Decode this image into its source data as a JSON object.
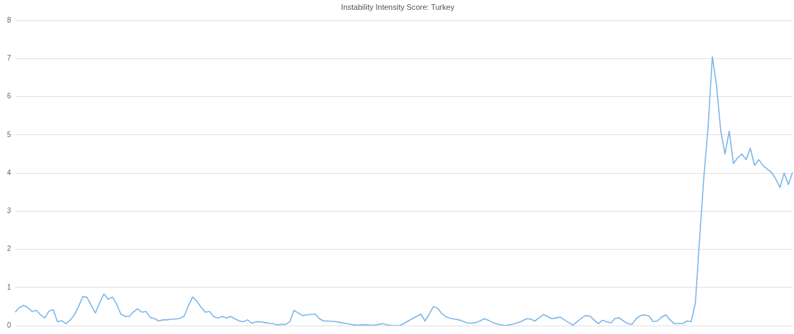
{
  "chart_data": {
    "type": "line",
    "title": "Instability Intensity Score: Turkey",
    "categories": [
      null,
      null,
      null,
      null,
      null,
      null,
      null,
      null,
      null,
      null,
      null,
      null,
      null,
      null,
      null,
      null,
      null,
      null,
      null,
      null,
      null,
      null,
      null,
      null,
      null,
      null,
      null,
      null,
      null,
      null,
      null,
      null,
      null,
      null,
      null,
      null,
      null,
      null,
      null,
      null,
      null,
      null,
      null,
      null,
      null,
      null,
      null,
      null,
      null,
      null,
      null,
      null,
      null,
      null,
      null,
      null,
      null,
      null,
      null,
      null,
      null,
      null,
      null,
      null,
      null,
      null,
      null,
      null,
      null,
      null,
      null,
      null,
      null,
      null,
      null,
      null,
      null,
      null,
      null,
      null,
      null,
      null,
      null,
      null,
      null,
      null,
      null,
      null,
      null,
      null,
      null,
      null,
      null,
      null,
      null,
      null,
      null,
      null,
      null,
      null,
      null,
      null,
      null,
      null,
      null,
      null,
      null,
      null,
      null,
      null,
      null,
      null,
      null,
      null,
      null,
      null,
      null,
      null,
      null,
      null,
      null,
      null,
      null,
      null,
      null,
      null,
      null,
      null,
      null,
      null,
      null,
      null,
      null,
      null,
      null,
      null,
      null,
      null,
      null,
      null,
      null,
      null,
      null,
      null,
      null,
      null,
      null,
      null,
      null,
      null,
      null,
      null,
      null,
      null,
      null,
      null,
      null,
      null,
      null,
      null,
      null,
      null,
      null,
      null,
      null,
      null,
      null,
      null,
      null,
      null,
      null,
      null,
      null,
      null,
      null,
      null,
      null,
      null,
      null,
      null,
      null,
      null,
      null,
      null,
      null
    ],
    "series": [
      {
        "color": "#7cb5ec",
        "values": [
          0.35,
          0.47,
          0.53,
          0.47,
          0.37,
          0.4,
          0.28,
          0.2,
          0.38,
          0.42,
          0.1,
          0.13,
          0.05,
          0.14,
          0.28,
          0.5,
          0.76,
          0.74,
          0.53,
          0.33,
          0.6,
          0.83,
          0.69,
          0.75,
          0.57,
          0.3,
          0.24,
          0.24,
          0.36,
          0.44,
          0.35,
          0.37,
          0.21,
          0.18,
          0.12,
          0.15,
          0.15,
          0.17,
          0.17,
          0.19,
          0.25,
          0.52,
          0.75,
          0.64,
          0.48,
          0.35,
          0.37,
          0.23,
          0.2,
          0.24,
          0.2,
          0.24,
          0.18,
          0.12,
          0.1,
          0.15,
          0.06,
          0.1,
          0.1,
          0.08,
          0.06,
          0.05,
          0.02,
          0.03,
          0.03,
          0.1,
          0.4,
          0.33,
          0.26,
          0.28,
          0.29,
          0.3,
          0.18,
          0.12,
          0.12,
          0.11,
          0.1,
          0.08,
          0.06,
          0.04,
          0.02,
          0.01,
          0.02,
          0.02,
          0.01,
          0.01,
          0.03,
          0.05,
          0.02,
          0.0,
          0.0,
          0.0,
          0.05,
          0.12,
          0.18,
          0.24,
          0.3,
          0.12,
          0.3,
          0.5,
          0.45,
          0.31,
          0.23,
          0.19,
          0.17,
          0.15,
          0.11,
          0.07,
          0.06,
          0.08,
          0.12,
          0.18,
          0.14,
          0.08,
          0.04,
          0.02,
          0.0,
          0.02,
          0.04,
          0.08,
          0.12,
          0.18,
          0.17,
          0.12,
          0.2,
          0.29,
          0.24,
          0.18,
          0.2,
          0.22,
          0.15,
          0.08,
          0.01,
          0.1,
          0.19,
          0.26,
          0.25,
          0.15,
          0.05,
          0.14,
          0.1,
          0.07,
          0.19,
          0.2,
          0.12,
          0.05,
          0.03,
          0.18,
          0.26,
          0.28,
          0.25,
          0.1,
          0.12,
          0.22,
          0.28,
          0.15,
          0.05,
          0.05,
          0.05,
          0.12,
          0.1,
          0.6,
          2.3,
          3.9,
          5.2,
          7.05,
          6.3,
          5.1,
          4.5,
          5.1,
          4.25,
          4.4,
          4.5,
          4.35,
          4.65,
          4.2,
          4.35,
          4.2,
          4.1,
          4.02,
          3.85,
          3.62,
          4.0,
          3.7,
          4.02
        ]
      }
    ],
    "ylim": [
      0,
      8
    ],
    "yticks": [
      0,
      1,
      2,
      3,
      4,
      5,
      6,
      7,
      8
    ],
    "grid": "y",
    "tick_labels": "y",
    "marker": "none",
    "line_style": "solid"
  }
}
